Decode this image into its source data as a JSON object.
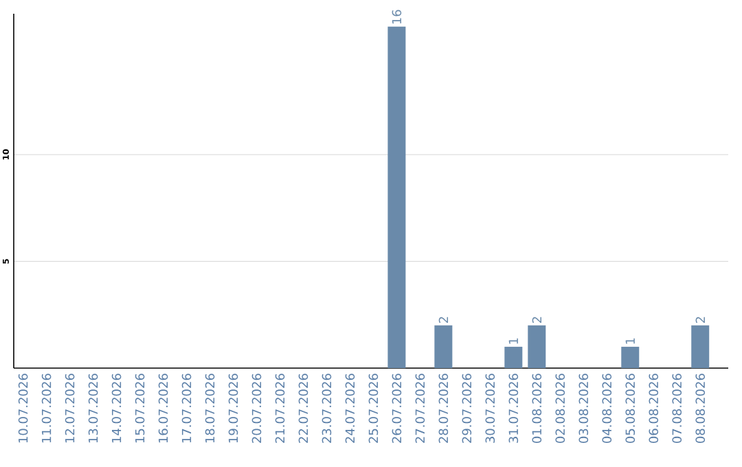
{
  "chart_data": {
    "type": "bar",
    "categories": [
      "10.07.2026",
      "11.07.2026",
      "12.07.2026",
      "13.07.2026",
      "14.07.2026",
      "15.07.2026",
      "16.07.2026",
      "17.07.2026",
      "18.07.2026",
      "19.07.2026",
      "20.07.2026",
      "21.07.2026",
      "22.07.2026",
      "23.07.2026",
      "24.07.2026",
      "25.07.2026",
      "26.07.2026",
      "27.07.2026",
      "28.07.2026",
      "29.07.2026",
      "30.07.2026",
      "31.07.2026",
      "01.08.2026",
      "02.08.2026",
      "03.08.2026",
      "04.08.2026",
      "05.08.2026",
      "06.08.2026",
      "07.08.2026",
      "08.08.2026"
    ],
    "values": [
      0,
      0,
      0,
      0,
      0,
      0,
      0,
      0,
      0,
      0,
      0,
      0,
      0,
      0,
      0,
      0,
      16,
      0,
      2,
      0,
      0,
      1,
      2,
      0,
      0,
      0,
      1,
      0,
      0,
      2
    ],
    "value_labels": [
      null,
      null,
      null,
      null,
      null,
      null,
      null,
      null,
      null,
      null,
      null,
      null,
      null,
      null,
      null,
      null,
      "16",
      null,
      "2",
      null,
      null,
      "1",
      "2",
      null,
      null,
      null,
      "1",
      null,
      null,
      "2"
    ],
    "color": "#6a8aaa",
    "ylim": [
      0,
      16.6
    ],
    "yticks": [
      5,
      10
    ],
    "grid": "y"
  }
}
